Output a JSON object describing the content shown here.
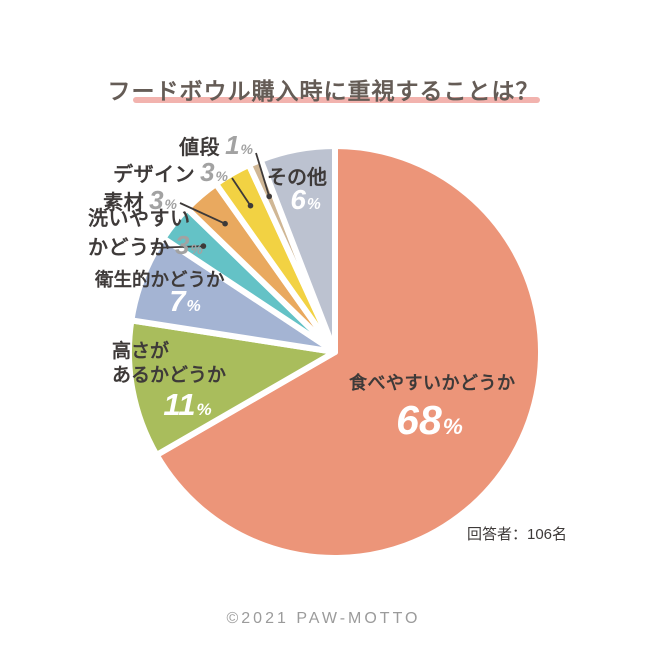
{
  "title": "フードボウル購入時に重視することは？",
  "respondents_note": "回答者：106名",
  "footer": "©2021 PAW-MOTTO",
  "display": {
    "washable_line1": "洗いやすい",
    "washable_line2": "かどうか",
    "height_line1": "高さが",
    "height_line2": "あるかどうか"
  },
  "chart_data": {
    "type": "pie",
    "title": "フードボウル購入時に重視することは？",
    "start_angle_deg": 0,
    "direction": "clockwise",
    "respondents": 106,
    "slices": [
      {
        "label": "食べやすいかどうか",
        "value": 68,
        "unit": "%",
        "color": "#EC9579",
        "label_placement": "inside"
      },
      {
        "label": "高さがあるかどうか",
        "value": 11,
        "unit": "%",
        "color": "#A9BD5C",
        "label_placement": "inside"
      },
      {
        "label": "衛生的かどうか",
        "value": 7,
        "unit": "%",
        "color": "#A4B4D3",
        "label_placement": "inside"
      },
      {
        "label": "洗いやすいかどうか",
        "value": 3,
        "unit": "%",
        "color": "#64C2C6",
        "label_placement": "outside"
      },
      {
        "label": "素材",
        "value": 3,
        "unit": "%",
        "color": "#E9A95F",
        "label_placement": "outside"
      },
      {
        "label": "デザイン",
        "value": 3,
        "unit": "%",
        "color": "#F2D243",
        "label_placement": "outside"
      },
      {
        "label": "値段",
        "value": 1,
        "unit": "%",
        "color": "#D0B795",
        "label_placement": "outside"
      },
      {
        "label": "その他",
        "value": 6,
        "unit": "%",
        "color": "#BCC2D0",
        "label_placement": "inside"
      }
    ],
    "accent_colors": {
      "title_underline": "#F2B3AE",
      "dark_text": "#3E3A39",
      "gray_number": "#A2A2A2",
      "leader_line": "#3E3A39"
    }
  }
}
